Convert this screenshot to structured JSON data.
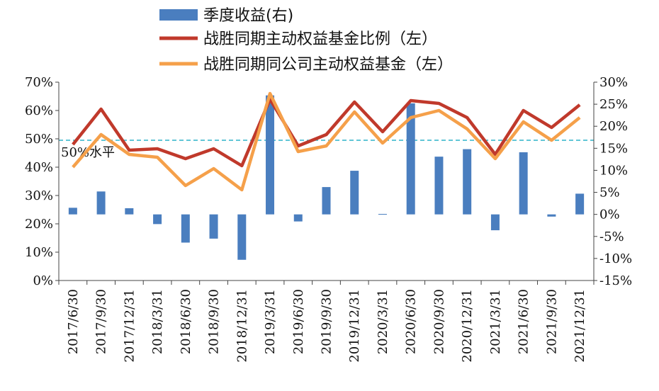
{
  "chart_data": {
    "type": "bar",
    "categories": [
      "2017/6/30",
      "2017/9/30",
      "2017/12/31",
      "2018/3/31",
      "2018/6/30",
      "2018/9/30",
      "2018/12/31",
      "2019/3/31",
      "2019/6/30",
      "2019/9/30",
      "2019/12/31",
      "2020/3/31",
      "2020/6/30",
      "2020/9/30",
      "2020/12/31",
      "2021/3/31",
      "2021/6/30",
      "2021/9/30",
      "2021/12/31"
    ],
    "series": [
      {
        "name": "季度收益(右)",
        "kind": "bar",
        "axis": "right",
        "color": "#4a7ebf",
        "values": [
          1.5,
          5.2,
          1.4,
          -2.2,
          -6.4,
          -5.5,
          -10.3,
          27.0,
          -1.6,
          6.2,
          9.9,
          0.1,
          25.2,
          13.1,
          14.8,
          -3.6,
          14.1,
          -0.5,
          4.7
        ]
      },
      {
        "name": "战胜同期主动权益基金比例（左）",
        "kind": "line",
        "axis": "left",
        "color": "#c0392b",
        "values": [
          48.0,
          60.5,
          46.0,
          46.5,
          43.0,
          46.5,
          40.5,
          64.0,
          47.5,
          51.5,
          63.0,
          52.5,
          63.5,
          62.5,
          57.5,
          44.5,
          60.0,
          54.0,
          62.0
        ]
      },
      {
        "name": "战胜同期同公司主动权益基金（左）",
        "kind": "line",
        "axis": "left",
        "color": "#f5a04a",
        "values": [
          40.0,
          51.5,
          44.5,
          43.5,
          33.5,
          39.5,
          32.0,
          66.0,
          45.5,
          47.5,
          59.5,
          48.5,
          57.5,
          60.0,
          53.5,
          43.0,
          56.0,
          49.5,
          57.5
        ]
      }
    ],
    "ylim_left": [
      0,
      70
    ],
    "ylim_right": [
      -15,
      30
    ],
    "y_ticks_left": [
      "0%",
      "10%",
      "20%",
      "30%",
      "40%",
      "50%",
      "60%",
      "70%"
    ],
    "y_ticks_right": [
      "-15%",
      "-10%",
      "-5%",
      "0%",
      "5%",
      "10%",
      "15%",
      "20%",
      "25%",
      "30%"
    ],
    "reference_line": {
      "value": 49.5,
      "axis": "left",
      "label": "50%水平",
      "color": "#2fb3c9",
      "style": "dashed"
    },
    "legend_placement": "top-center"
  }
}
